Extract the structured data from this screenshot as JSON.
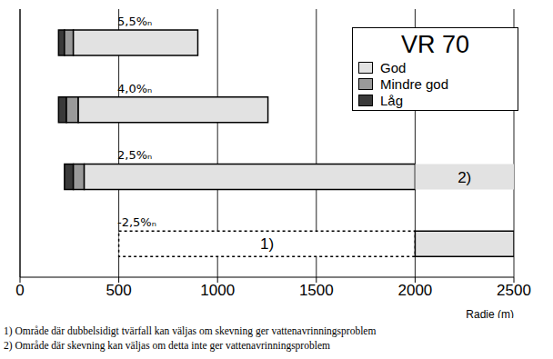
{
  "chart_data": {
    "type": "bar",
    "orientation": "horizontal",
    "stacked": true,
    "grid": true,
    "legend": "top-right",
    "legend_title": "VR 70",
    "legend_entries": [
      "God",
      "Mindre god",
      "Låg"
    ],
    "categories": [
      "5,5%ₙ",
      "4,0%ₙ",
      "2,5%ₙ",
      "-2,5%ₙ"
    ],
    "start": [
      195,
      195,
      225,
      500
    ],
    "series": [
      {
        "name": "Låg",
        "color": "#3a3a3a",
        "line_style": "solid",
        "values": [
          30,
          40,
          45,
          null
        ]
      },
      {
        "name": "Mindre god",
        "color": "#9a9a9a",
        "line_style": "solid",
        "values": [
          45,
          60,
          55,
          null
        ]
      },
      {
        "name": "1)",
        "color": "#ffffff",
        "line_style": "dotted",
        "values": [
          null,
          null,
          null,
          1500
        ]
      },
      {
        "name": "God",
        "color": "#e2e2e2",
        "line_style": "solid",
        "values": [
          630,
          960,
          1675,
          500
        ]
      },
      {
        "name": "2)",
        "color": "#e2e2e2",
        "line_style": "none",
        "values": [
          null,
          null,
          500,
          null
        ]
      }
    ],
    "x_label": "Radie (m)",
    "xlim": [
      0,
      2500
    ],
    "xticks": [
      0,
      500,
      1000,
      1500,
      2000,
      2500
    ],
    "tick_labels": "x",
    "notes": [
      "1) Område där dubbelsidigt tvärfall kan väljas om skevning ger vattenavrinningsproblem",
      "2) Område där skevning kan väljas om detta inte ger vattenavrinningsproblem"
    ]
  }
}
